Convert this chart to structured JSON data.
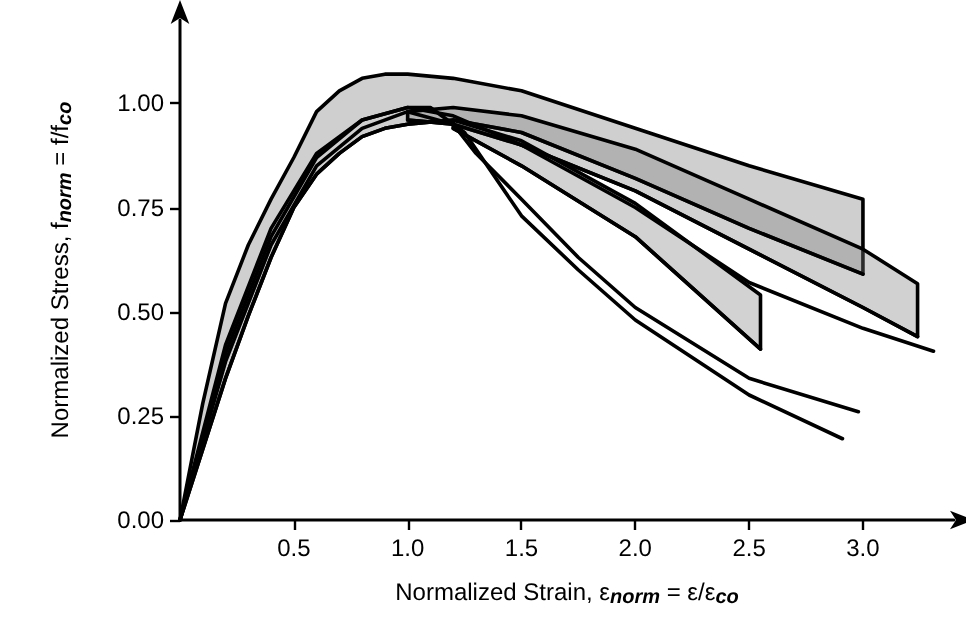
{
  "chart_data": {
    "type": "line",
    "xlabel": "Normalized Strain, ε$_{norm}$ = ε/ε$_{co}$",
    "ylabel": "Normalized Stress, f$_{norm}$ = f/f$_{co}$",
    "xlim": [
      0,
      3.4
    ],
    "ylim": [
      0,
      1.2
    ],
    "xticks": [
      {
        "value": 0.5,
        "label": "0.5"
      },
      {
        "value": 1,
        "label": "1.0"
      },
      {
        "value": 1.5,
        "label": "1.5"
      },
      {
        "value": 2,
        "label": "2.0"
      },
      {
        "value": 2.5,
        "label": "2.5"
      },
      {
        "value": 3,
        "label": "3.0"
      }
    ],
    "yticks": [
      {
        "value": 0,
        "label": "0.00"
      },
      {
        "value": 0.25,
        "label": "0.25"
      },
      {
        "value": 0.5,
        "label": "0.50"
      },
      {
        "value": 0.75,
        "label": "0.75"
      },
      {
        "value": 1,
        "label": "1.00"
      }
    ],
    "grid": false,
    "legend": false,
    "marker": "none",
    "line_style": "solid",
    "series": [
      {
        "color": "#000000",
        "x": [
          0,
          0.1,
          0.2,
          0.3,
          0.4,
          0.5,
          0.6,
          0.7,
          0.8,
          0.9,
          1.0,
          1.2,
          1.5,
          2.0,
          2.5,
          3.0
        ],
        "values": [
          0,
          0.17,
          0.34,
          0.49,
          0.63,
          0.75,
          0.83,
          0.88,
          0.92,
          0.94,
          0.95,
          0.96,
          0.93,
          0.82,
          0.7,
          0.59
        ],
        "lower": [
          0,
          0.17,
          0.34,
          0.49,
          0.63,
          0.75,
          0.83,
          0.88,
          0.92,
          0.94,
          0.95,
          0.96,
          0.93,
          0.82,
          0.7,
          0.59
        ],
        "upper": [
          0,
          0.28,
          0.52,
          0.66,
          0.77,
          0.87,
          0.98,
          1.03,
          1.06,
          1.07,
          1.07,
          1.06,
          1.03,
          0.94,
          0.85,
          0.77
        ]
      },
      {
        "color": "#000000",
        "x": [
          1.0,
          1.2,
          1.5,
          2.0,
          2.5,
          3.0,
          3.24
        ],
        "values": [
          0.96,
          0.95,
          0.9,
          0.79,
          0.65,
          0.51,
          0.44
        ],
        "lower": [
          0.96,
          0.95,
          0.9,
          0.79,
          0.65,
          0.51,
          0.44
        ],
        "upper": [
          0.98,
          0.99,
          0.97,
          0.89,
          0.77,
          0.65,
          0.567
        ]
      },
      {
        "color": "#000000",
        "x": [
          1.2,
          1.5,
          2.0,
          2.55
        ],
        "values": [
          0.94,
          0.85,
          0.68,
          0.41
        ],
        "lower": [
          0.94,
          0.85,
          0.68,
          0.41
        ],
        "upper": [
          0.96,
          0.91,
          0.76,
          0.54
        ]
      },
      {
        "color": "#000000",
        "x": [
          0,
          0.2,
          0.4,
          0.6,
          0.8,
          1.0,
          1.2,
          1.5,
          2.0,
          2.5,
          3.0,
          3.31
        ],
        "values": [
          0,
          0.42,
          0.7,
          0.88,
          0.96,
          0.99,
          0.97,
          0.9,
          0.75,
          0.57,
          0.46,
          0.405
        ]
      },
      {
        "color": "#000000",
        "x": [
          0,
          0.2,
          0.4,
          0.6,
          0.8,
          1.0,
          1.2,
          1.3,
          1.5,
          1.75,
          2.0,
          2.5,
          2.98
        ],
        "values": [
          0,
          0.38,
          0.66,
          0.85,
          0.94,
          0.98,
          0.95,
          0.88,
          0.77,
          0.63,
          0.51,
          0.34,
          0.26
        ]
      },
      {
        "color": "#000000",
        "x": [
          0,
          0.2,
          0.4,
          0.6,
          0.8,
          1.0,
          1.1,
          1.25,
          1.5,
          1.75,
          2.0,
          2.5,
          2.91
        ],
        "values": [
          0,
          0.4,
          0.68,
          0.87,
          0.96,
          0.99,
          0.99,
          0.93,
          0.73,
          0.6,
          0.48,
          0.3,
          0.195
        ]
      }
    ]
  }
}
